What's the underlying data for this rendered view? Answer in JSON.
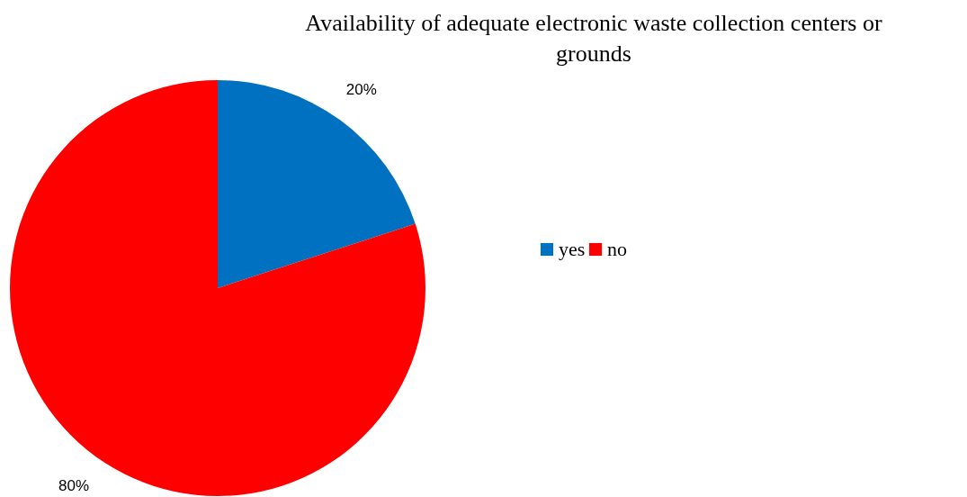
{
  "chart_data": {
    "type": "pie",
    "title": "Availability of adequate electronic waste collection centers or grounds",
    "categories": [
      "yes",
      "no"
    ],
    "values": [
      20,
      80
    ],
    "colors": [
      "#0070c0",
      "#ff0000"
    ],
    "value_labels": [
      "20%",
      "80%"
    ],
    "legend": "right"
  }
}
